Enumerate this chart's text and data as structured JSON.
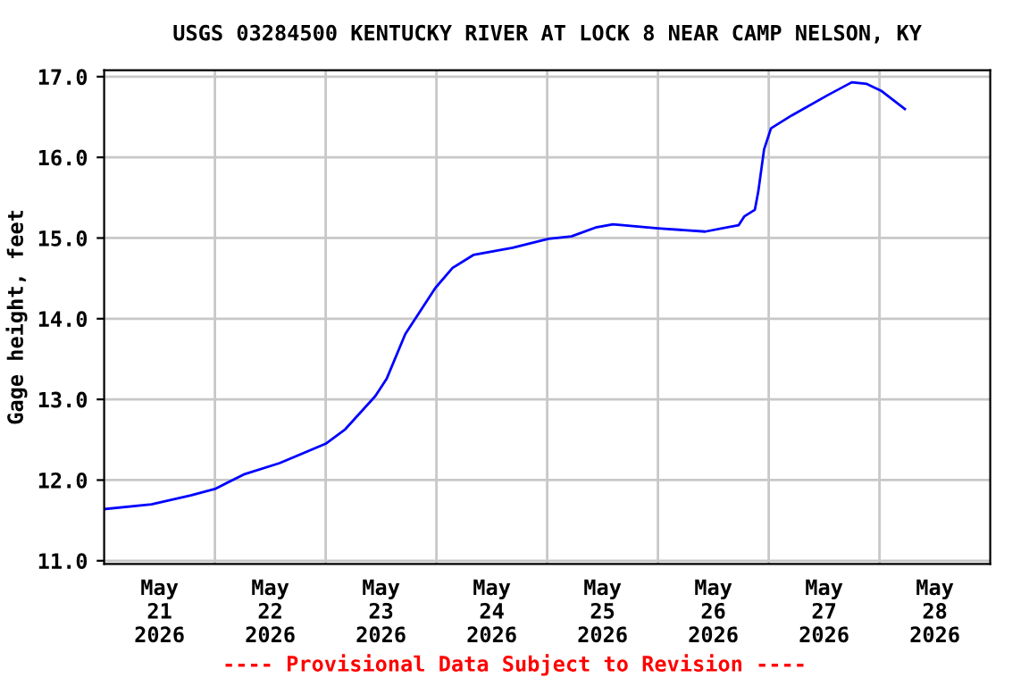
{
  "chart_data": {
    "type": "line",
    "title": "USGS 03284500 KENTUCKY RIVER AT LOCK 8 NEAR CAMP NELSON, KY",
    "ylabel": "Gage height, feet",
    "annotations": [
      "---- Provisional Data Subject to Revision ----"
    ],
    "x": [
      "2026-05-21T00:00",
      "2026-05-21T10:15",
      "2026-05-21T18:45",
      "2026-05-22T00:00",
      "2026-05-22T06:15",
      "2026-05-22T14:00",
      "2026-05-23T00:00",
      "2026-05-23T04:15",
      "2026-05-23T10:45",
      "2026-05-23T13:15",
      "2026-05-23T17:15",
      "2026-05-23T23:45",
      "2026-05-24T03:30",
      "2026-05-24T08:00",
      "2026-05-24T16:30",
      "2026-05-25T00:15",
      "2026-05-25T05:15",
      "2026-05-25T10:30",
      "2026-05-25T14:15",
      "2026-05-26T00:00",
      "2026-05-26T10:15",
      "2026-05-26T17:30",
      "2026-05-26T18:45",
      "2026-05-26T21:00",
      "2026-05-26T21:45",
      "2026-05-26T23:00",
      "2026-05-27T00:30",
      "2026-05-27T05:00",
      "2026-05-27T12:45",
      "2026-05-27T18:00",
      "2026-05-27T21:15",
      "2026-05-28T00:30",
      "2026-05-28T05:30"
    ],
    "series": [
      {
        "color": "#0000ff",
        "values": [
          11.64,
          11.7,
          11.81,
          11.89,
          12.07,
          12.21,
          12.45,
          12.63,
          13.04,
          13.26,
          13.81,
          14.38,
          14.63,
          14.79,
          14.88,
          14.99,
          15.02,
          15.13,
          15.17,
          15.12,
          15.08,
          15.16,
          15.27,
          15.35,
          15.58,
          16.1,
          16.36,
          16.52,
          16.77,
          16.93,
          16.91,
          16.82,
          16.6
        ]
      }
    ],
    "xlim": [
      "2026-05-21T00:00",
      "2026-05-29T00:00"
    ],
    "xticks": [
      {
        "value": "2026-05-21T12:00",
        "label": "May\n21\n2026"
      },
      {
        "value": "2026-05-22T12:00",
        "label": "May\n22\n2026"
      },
      {
        "value": "2026-05-23T12:00",
        "label": "May\n23\n2026"
      },
      {
        "value": "2026-05-24T12:00",
        "label": "May\n24\n2026"
      },
      {
        "value": "2026-05-25T12:00",
        "label": "May\n25\n2026"
      },
      {
        "value": "2026-05-26T12:00",
        "label": "May\n26\n2026"
      },
      {
        "value": "2026-05-27T12:00",
        "label": "May\n27\n2026"
      },
      {
        "value": "2026-05-28T12:00",
        "label": "May\n28\n2026"
      },
      {
        "value": "2026-05-22T00:00",
        "label": null
      },
      {
        "value": "2026-05-23T00:00",
        "label": null
      },
      {
        "value": "2026-05-24T00:00",
        "label": null
      },
      {
        "value": "2026-05-25T00:00",
        "label": null
      },
      {
        "value": "2026-05-26T00:00",
        "label": null
      },
      {
        "value": "2026-05-27T00:00",
        "label": null
      },
      {
        "value": "2026-05-28T00:00",
        "label": null
      }
    ],
    "ylim": [
      10.96,
      17.08
    ],
    "yticks": [
      {
        "value": 11,
        "label": "11.0"
      },
      {
        "value": 12,
        "label": "12.0"
      },
      {
        "value": 13,
        "label": "13.0"
      },
      {
        "value": 14,
        "label": "14.0"
      },
      {
        "value": 15,
        "label": "15.0"
      },
      {
        "value": 16,
        "label": "16.0"
      },
      {
        "value": 17,
        "label": "17.0"
      }
    ],
    "grid": true,
    "legend": false,
    "marker": "none",
    "line_style": "solid"
  }
}
